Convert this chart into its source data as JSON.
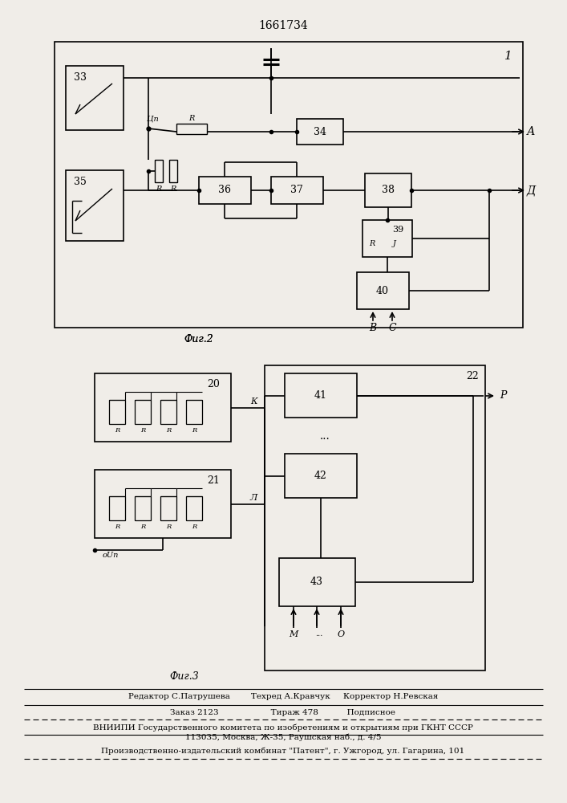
{
  "bg_color": "#f0ede8",
  "page_color": "#f0ede8",
  "title_text": "1661734",
  "fig2_caption": "Фиг.2",
  "fig3_caption": "Фиг.3",
  "footer_lines": [
    "Редактор С.Патрушева        Техред А.Кравчук     Корректор Н.Ревская",
    "Заказ 2123                    Тираж 478           Подписное",
    "ВНИИПИ Государственного комитета по изобретениям и открытиям при ГКНТ СССР",
    "113035, Москва, Ж-35, Раушская наб., д. 4/5",
    "Производственно-издательский комбинат \"Патент\", г. Ужгород, ул. Гагарина, 101"
  ]
}
